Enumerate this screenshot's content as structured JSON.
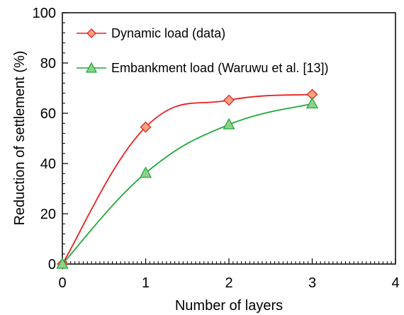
{
  "chart_data": {
    "type": "line",
    "xlabel": "Number of layers",
    "ylabel": "Reduction of settlement (%)",
    "xlim": [
      0,
      4
    ],
    "ylim": [
      0,
      100
    ],
    "xticks": [
      "0",
      "1",
      "2",
      "3",
      "4"
    ],
    "yticks": [
      "0",
      "20",
      "40",
      "60",
      "80",
      "100"
    ],
    "grid": false,
    "legend_position": "top-left",
    "series": [
      {
        "name": "Dynamic load (data)",
        "x": [
          0,
          1,
          2,
          3
        ],
        "y": [
          0,
          54.5,
          65.2,
          67.5
        ],
        "color": "#e8211f",
        "marker": "diamond",
        "marker_fill": "#f4a582"
      },
      {
        "name": "Embankment load (Waruwu et al. [13])",
        "x": [
          0,
          1,
          2,
          3
        ],
        "y": [
          0,
          36.2,
          55.5,
          63.8
        ],
        "color": "#1faa3a",
        "marker": "triangle",
        "marker_fill": "#8fd18a"
      }
    ]
  }
}
